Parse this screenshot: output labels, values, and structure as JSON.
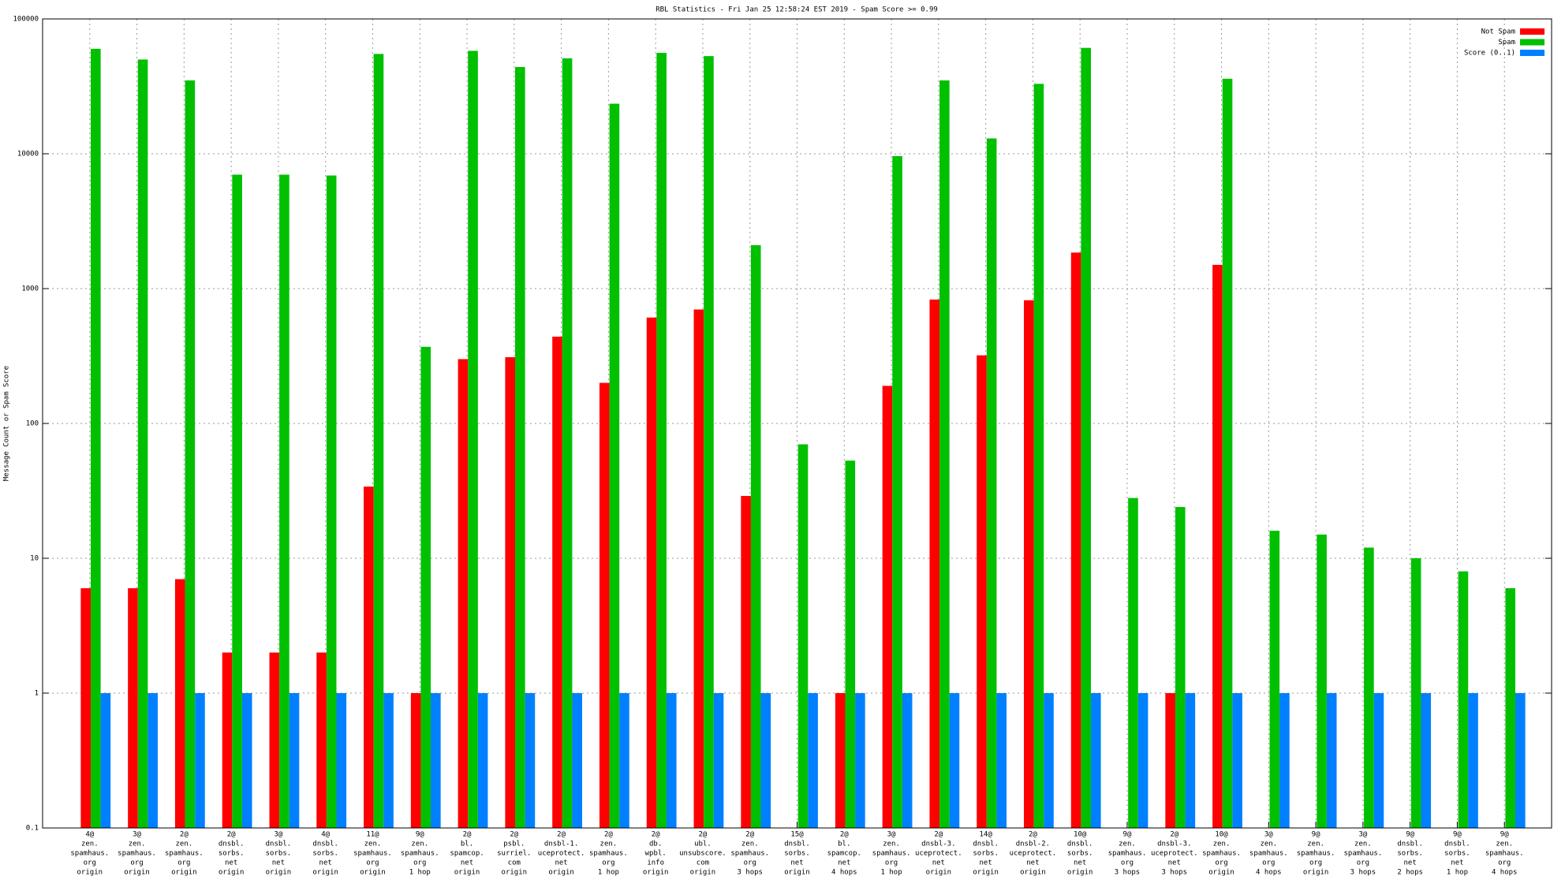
{
  "chart_data": {
    "type": "bar",
    "title": "RBL Statistics - Fri Jan 25 12:58:24 EST 2019 - Spam Score >= 0.99",
    "y_label": "Message Count or Spam Score",
    "log_scale": true,
    "grid": true,
    "legend_position": "top-right",
    "ylim": [
      0.1,
      100000
    ],
    "yticks": [
      0.1,
      1,
      10,
      100,
      1000,
      10000,
      100000
    ],
    "categories": [
      [
        "4@",
        "zen.",
        "spamhaus.",
        "org",
        "origin"
      ],
      [
        "3@",
        "zen.",
        "spamhaus.",
        "org",
        "origin"
      ],
      [
        "2@",
        "zen.",
        "spamhaus.",
        "org",
        "origin"
      ],
      [
        "2@",
        "dnsbl.",
        "sorbs.",
        "net",
        "origin"
      ],
      [
        "3@",
        "dnsbl.",
        "sorbs.",
        "net",
        "origin"
      ],
      [
        "4@",
        "dnsbl.",
        "sorbs.",
        "net",
        "origin"
      ],
      [
        "11@",
        "zen.",
        "spamhaus.",
        "org",
        "origin"
      ],
      [
        "9@",
        "zen.",
        "spamhaus.",
        "org",
        "1 hop"
      ],
      [
        "2@",
        "bl.",
        "spamcop.",
        "net",
        "origin"
      ],
      [
        "2@",
        "psbl.",
        "surriel.",
        "com",
        "origin"
      ],
      [
        "2@",
        "dnsbl-1.",
        "uceprotect.",
        "net",
        "origin"
      ],
      [
        "2@",
        "zen.",
        "spamhaus.",
        "org",
        "1 hop"
      ],
      [
        "2@",
        "db.",
        "wpbl.",
        "info",
        "origin"
      ],
      [
        "2@",
        "ubl.",
        "unsubscore.",
        "com",
        "origin"
      ],
      [
        "2@",
        "zen.",
        "spamhaus.",
        "org",
        "3 hops"
      ],
      [
        "15@",
        "dnsbl.",
        "sorbs.",
        "net",
        "origin"
      ],
      [
        "2@",
        "bl.",
        "spamcop.",
        "net",
        "4 hops"
      ],
      [
        "3@",
        "zen.",
        "spamhaus.",
        "org",
        "1 hop"
      ],
      [
        "2@",
        "dnsbl-3.",
        "uceprotect.",
        "net",
        "origin"
      ],
      [
        "14@",
        "dnsbl.",
        "sorbs.",
        "net",
        "origin"
      ],
      [
        "2@",
        "dnsbl-2.",
        "uceprotect.",
        "net",
        "origin"
      ],
      [
        "10@",
        "dnsbl.",
        "sorbs.",
        "net",
        "origin"
      ],
      [
        "9@",
        "zen.",
        "spamhaus.",
        "org",
        "3 hops"
      ],
      [
        "2@",
        "dnsbl-3.",
        "uceprotect.",
        "net",
        "3 hops"
      ],
      [
        "10@",
        "zen.",
        "spamhaus.",
        "org",
        "origin"
      ],
      [
        "3@",
        "zen.",
        "spamhaus.",
        "org",
        "4 hops"
      ],
      [
        "9@",
        "zen.",
        "spamhaus.",
        "org",
        "origin"
      ],
      [
        "3@",
        "zen.",
        "spamhaus.",
        "org",
        "3 hops"
      ],
      [
        "9@",
        "dnsbl.",
        "sorbs.",
        "net",
        "2 hops"
      ],
      [
        "9@",
        "dnsbl.",
        "sorbs.",
        "net",
        "1 hop"
      ],
      [
        "9@",
        "zen.",
        "spamhaus.",
        "org",
        "4 hops"
      ]
    ],
    "series": [
      {
        "name": "Not Spam",
        "color": "#ff0000",
        "values": [
          6,
          6,
          7,
          2,
          2,
          2,
          34,
          1,
          300,
          310,
          440,
          200,
          610,
          700,
          29,
          null,
          1,
          190,
          830,
          320,
          820,
          1850,
          null,
          1,
          1500,
          null,
          null,
          null,
          null,
          null,
          null
        ]
      },
      {
        "name": "Spam",
        "color": "#00c000",
        "values": [
          60000,
          50000,
          35000,
          7000,
          7000,
          6900,
          55000,
          370,
          58000,
          44000,
          51000,
          23500,
          56000,
          53000,
          2100,
          70,
          53,
          9600,
          35000,
          13000,
          33000,
          61000,
          28,
          24,
          36000,
          16,
          15,
          12,
          10,
          8,
          6
        ]
      },
      {
        "name": "Score (0..1)",
        "color": "#0080ff",
        "values": [
          1,
          1,
          1,
          1,
          1,
          1,
          1,
          1,
          1,
          1,
          1,
          1,
          1,
          1,
          1,
          1,
          1,
          1,
          1,
          1,
          1,
          1,
          1,
          1,
          1,
          1,
          1,
          1,
          1,
          1,
          1
        ]
      }
    ]
  }
}
